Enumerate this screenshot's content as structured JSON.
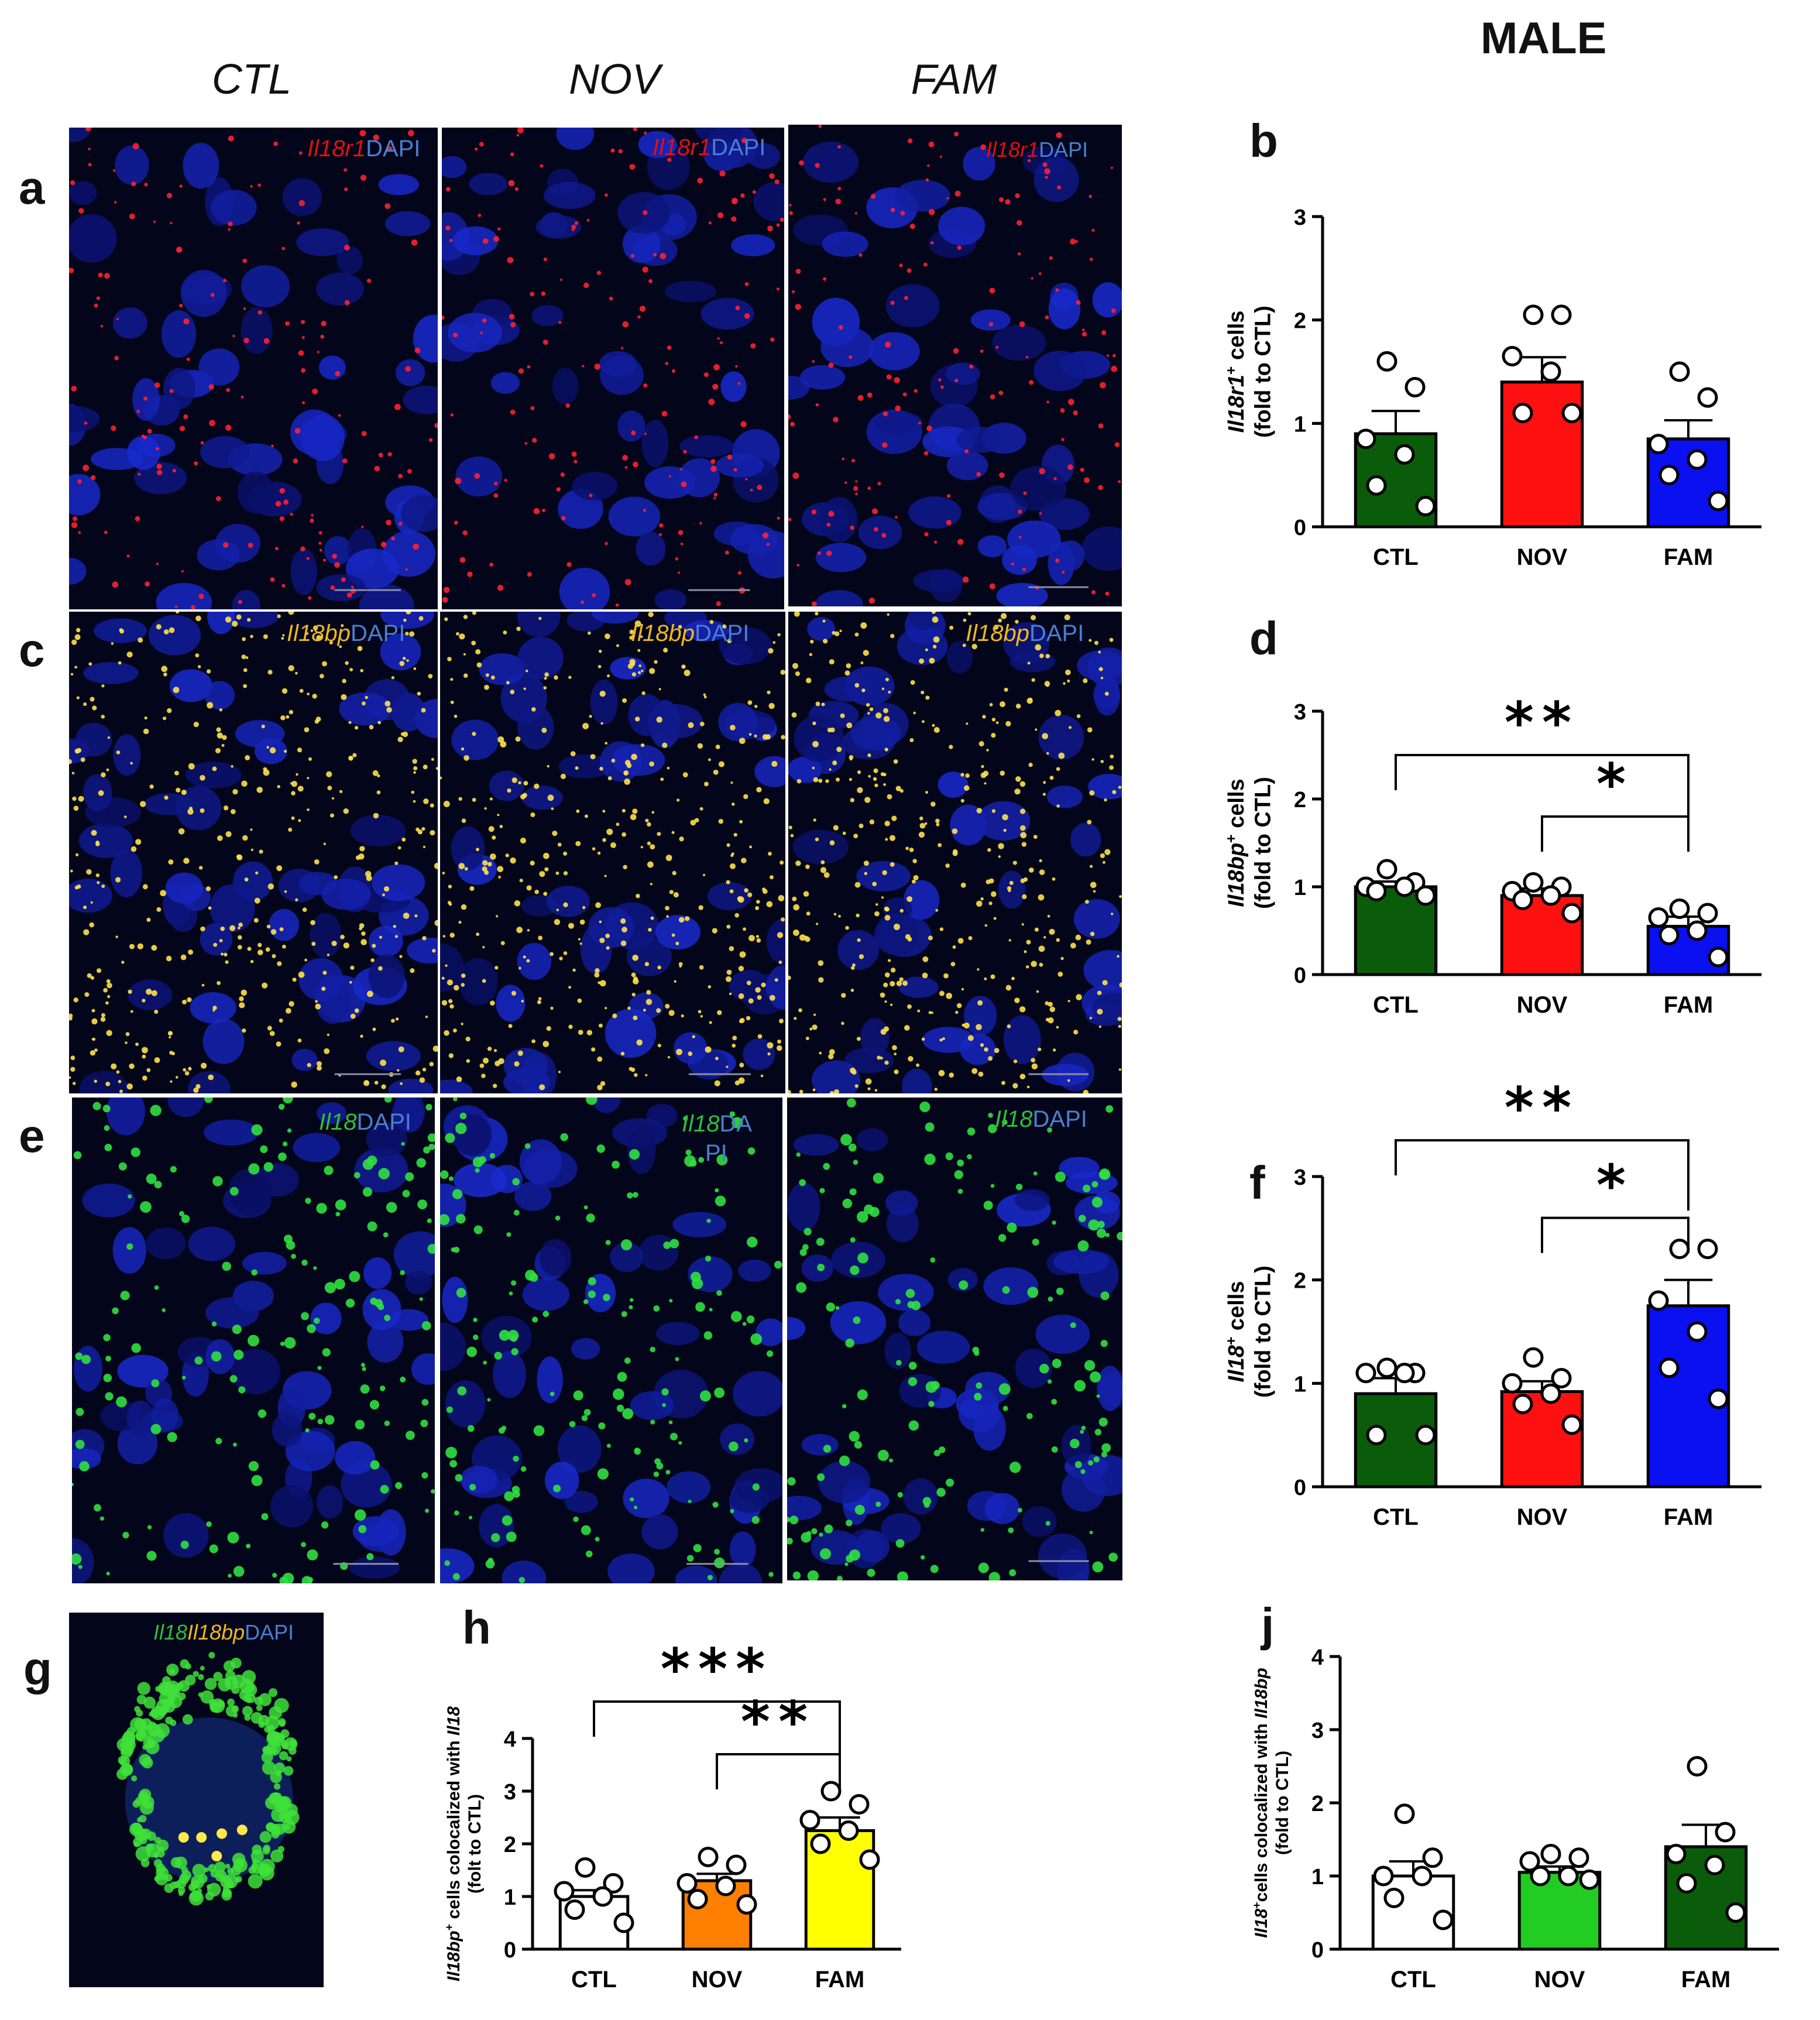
{
  "header": {
    "title": "MALE"
  },
  "columns": [
    "CTL",
    "NOV",
    "FAM"
  ],
  "panel_letters": {
    "a": "a",
    "b": "b",
    "c": "c",
    "d": "d",
    "e": "e",
    "f": "f",
    "g": "g",
    "h": "h",
    "j": "j"
  },
  "micrographs": {
    "row_a": {
      "gene": "Il18r1",
      "dapi": "DAPI",
      "gene_color": "#e01010"
    },
    "row_c": {
      "gene": "Il18bp",
      "dapi": "DAPI",
      "gene_color": "#f0b81a"
    },
    "row_e": {
      "gene": "Il18",
      "dapi": "DAPI",
      "gene_color": "#2fbf3a",
      "nov_dapi_split": [
        "DA",
        "PI"
      ]
    },
    "g": {
      "gene1": "Il18",
      "gene2": "Il18bp",
      "dapi": "DAPI"
    }
  },
  "chart_data": [
    {
      "id": "b",
      "type": "bar",
      "categories": [
        "CTL",
        "NOV",
        "FAM"
      ],
      "values": [
        0.9,
        1.4,
        0.85
      ],
      "sem": [
        0.22,
        0.24,
        0.18
      ],
      "points": [
        [
          1.6,
          1.35,
          0.85,
          0.7,
          0.4,
          0.2
        ],
        [
          2.05,
          2.05,
          1.65,
          1.5,
          1.1,
          1.1
        ],
        [
          1.5,
          1.25,
          0.8,
          0.65,
          0.5,
          0.25
        ]
      ],
      "colors": [
        "#0a5c0a",
        "#ff1010",
        "#0a10f0"
      ],
      "ylabel_gene": "Il18r1",
      "ylabel_sup": "+",
      "ylabel_rest": " cells",
      "ylabel_line2": "(fold to CTL)",
      "ylim": [
        0,
        3
      ],
      "yticks": [
        "0",
        "1",
        "2",
        "3"
      ],
      "sig": []
    },
    {
      "id": "d",
      "type": "bar",
      "categories": [
        "CTL",
        "NOV",
        "FAM"
      ],
      "values": [
        1.0,
        0.9,
        0.55
      ],
      "sem": [
        0.06,
        0.08,
        0.11
      ],
      "points": [
        [
          1.2,
          1.05,
          1.0,
          1.0,
          0.95,
          0.9
        ],
        [
          1.05,
          1.0,
          0.95,
          0.9,
          0.85,
          0.7
        ],
        [
          0.75,
          0.7,
          0.65,
          0.5,
          0.45,
          0.2
        ]
      ],
      "colors": [
        "#0a5c0a",
        "#ff1010",
        "#0a10f0"
      ],
      "ylabel_gene": "Il18bp",
      "ylabel_sup": "+",
      "ylabel_rest": " cells",
      "ylabel_line2": "(fold to CTL)",
      "ylim": [
        0,
        3
      ],
      "yticks": [
        "0",
        "1",
        "2",
        "3"
      ],
      "sig": [
        {
          "from": 0,
          "to": 2,
          "label": "**",
          "level": 2.5
        },
        {
          "from": 1,
          "to": 2,
          "label": "*",
          "level": 1.8
        }
      ]
    },
    {
      "id": "f",
      "type": "bar",
      "categories": [
        "CTL",
        "NOV",
        "FAM"
      ],
      "values": [
        0.9,
        0.92,
        1.75
      ],
      "sem": [
        0.15,
        0.1,
        0.25
      ],
      "points": [
        [
          1.15,
          1.1,
          1.1,
          1.1,
          0.5,
          0.5
        ],
        [
          1.25,
          1.05,
          1.0,
          0.9,
          0.8,
          0.6
        ],
        [
          2.3,
          2.3,
          1.8,
          1.5,
          1.15,
          0.85
        ]
      ],
      "colors": [
        "#0a5c0a",
        "#ff1010",
        "#0a10f0"
      ],
      "ylabel_gene": "Il18",
      "ylabel_sup": "+",
      "ylabel_rest": " cells",
      "ylabel_line2": "(fold to CTL)",
      "ylim": [
        0,
        3
      ],
      "yticks": [
        "0",
        "1",
        "2",
        "3"
      ],
      "sig": [
        {
          "from": 0,
          "to": 2,
          "label": "**",
          "level": 3.35
        },
        {
          "from": 1,
          "to": 2,
          "label": "*",
          "level": 2.6
        }
      ]
    },
    {
      "id": "h",
      "type": "bar",
      "categories": [
        "CTL",
        "NOV",
        "FAM"
      ],
      "values": [
        1.0,
        1.3,
        2.25
      ],
      "sem": [
        0.12,
        0.13,
        0.25
      ],
      "points": [
        [
          1.55,
          1.25,
          1.1,
          1.0,
          0.75,
          0.5
        ],
        [
          1.75,
          1.6,
          1.25,
          1.2,
          0.95,
          0.85
        ],
        [
          3.0,
          2.75,
          2.45,
          2.25,
          2.0,
          1.7
        ]
      ],
      "colors": [
        "#ffffff",
        "#ff7f00",
        "#ffff00"
      ],
      "ylabel_gene": "Il18bp",
      "ylabel_sup": "+",
      "ylabel_rest": " cells colocalized with ",
      "ylabel_gene2": "Il18",
      "ylabel_line2": "(folt to CTL)",
      "ylim": [
        0,
        4
      ],
      "yticks": [
        "0",
        "1",
        "2",
        "3",
        "4"
      ],
      "sig": [
        {
          "from": 0,
          "to": 2,
          "label": "***",
          "level": 4.7
        },
        {
          "from": 1,
          "to": 2,
          "label": "**",
          "level": 3.7
        }
      ]
    },
    {
      "id": "j",
      "type": "bar",
      "categories": [
        "CTL",
        "NOV",
        "FAM"
      ],
      "values": [
        1.0,
        1.05,
        1.4
      ],
      "sem": [
        0.2,
        0.08,
        0.3
      ],
      "points": [
        [
          1.85,
          1.25,
          1.0,
          1.0,
          0.7,
          0.4
        ],
        [
          1.3,
          1.25,
          1.2,
          1.0,
          1.0,
          0.95
        ],
        [
          2.5,
          1.6,
          1.3,
          1.15,
          0.9,
          0.5
        ]
      ],
      "colors": [
        "#ffffff",
        "#22cc22",
        "#0a5c0a"
      ],
      "ylabel_gene": "Il18",
      "ylabel_sup": "+",
      "ylabel_rest": "cells colocalized with ",
      "ylabel_gene2": "Il18bp",
      "ylabel_line2": "(fold to CTL)",
      "ylim": [
        0,
        4
      ],
      "yticks": [
        "0",
        "1",
        "2",
        "3",
        "4"
      ],
      "sig": []
    }
  ]
}
